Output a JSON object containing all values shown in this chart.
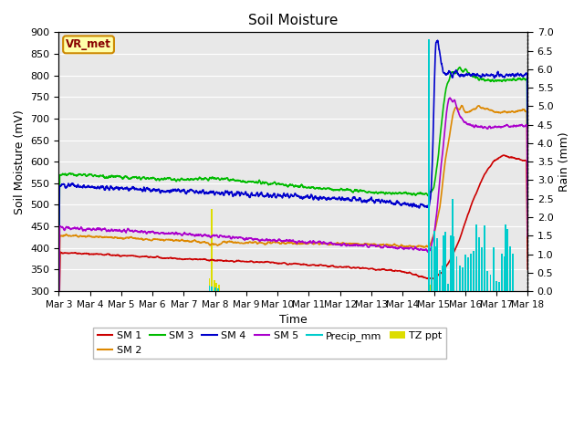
{
  "title": "Soil Moisture",
  "xlabel": "Time",
  "ylabel_left": "Soil Moisture (mV)",
  "ylabel_right": "Rain (mm)",
  "xlim": [
    3,
    18
  ],
  "ylim_left": [
    300,
    900
  ],
  "ylim_right": [
    0.0,
    7.0
  ],
  "yticks_left": [
    300,
    350,
    400,
    450,
    500,
    550,
    600,
    650,
    700,
    750,
    800,
    850,
    900
  ],
  "yticks_right": [
    0.0,
    0.5,
    1.0,
    1.5,
    2.0,
    2.5,
    3.0,
    3.5,
    4.0,
    4.5,
    5.0,
    5.5,
    6.0,
    6.5,
    7.0
  ],
  "xtick_labels": [
    "Mar 3",
    "Mar 4",
    "Mar 5",
    "Mar 6",
    "Mar 7",
    "Mar 8",
    "Mar 9",
    "Mar 10",
    "Mar 11",
    "Mar 12",
    "Mar 13",
    "Mar 14",
    "Mar 15",
    "Mar 16",
    "Mar 17",
    "Mar 18"
  ],
  "colors": {
    "SM1": "#cc0000",
    "SM2": "#dd8800",
    "SM3": "#00bb00",
    "SM4": "#0000cc",
    "SM5": "#aa00cc",
    "Precip": "#00cccc",
    "TZ": "#dddd00"
  },
  "annotation_text": "VR_met",
  "background_color": "#e8e8e8",
  "grid_color": "#ffffff"
}
